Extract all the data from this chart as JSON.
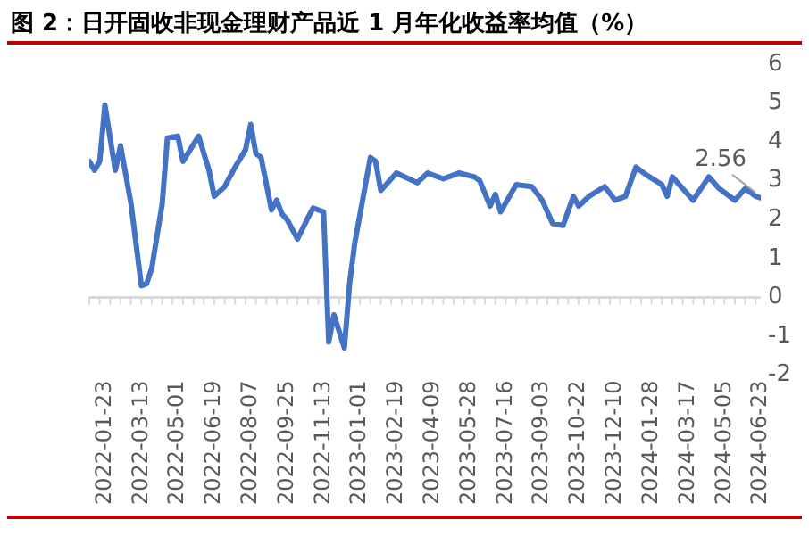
{
  "chart_data": {
    "type": "line",
    "title": "图 2：日开固收非现金理财产品近 1 月年化收益率均值（%）",
    "series": [
      {
        "color": "#4472c4",
        "x": [
          "2022-01-02",
          "2022-01-09",
          "2022-01-16",
          "2022-01-23",
          "2022-01-30",
          "2022-02-06",
          "2022-02-13",
          "2022-02-27",
          "2022-03-13",
          "2022-03-20",
          "2022-03-27",
          "2022-04-10",
          "2022-04-17",
          "2022-05-01",
          "2022-05-08",
          "2022-05-29",
          "2022-06-12",
          "2022-06-19",
          "2022-07-03",
          "2022-07-17",
          "2022-07-31",
          "2022-08-07",
          "2022-08-14",
          "2022-08-21",
          "2022-09-04",
          "2022-09-11",
          "2022-09-18",
          "2022-09-25",
          "2022-10-09",
          "2022-10-23",
          "2022-10-30",
          "2022-11-13",
          "2022-11-20",
          "2022-11-27",
          "2022-12-11",
          "2022-12-18",
          "2022-12-25",
          "2023-01-15",
          "2023-01-22",
          "2023-01-29",
          "2023-02-19",
          "2023-03-19",
          "2023-04-02",
          "2023-04-23",
          "2023-05-14",
          "2023-06-04",
          "2023-06-11",
          "2023-06-25",
          "2023-07-02",
          "2023-07-09",
          "2023-07-30",
          "2023-08-20",
          "2023-09-03",
          "2023-09-17",
          "2023-10-01",
          "2023-10-15",
          "2023-10-22",
          "2023-11-05",
          "2023-11-26",
          "2023-12-10",
          "2023-12-24",
          "2024-01-07",
          "2024-01-21",
          "2024-02-11",
          "2024-02-18",
          "2024-02-25",
          "2024-03-10",
          "2024-03-24",
          "2024-04-14",
          "2024-04-28",
          "2024-05-19",
          "2024-06-02",
          "2024-06-16",
          "2024-06-23"
        ],
        "values": [
          3.5,
          3.27,
          3.5,
          4.95,
          4.1,
          3.27,
          3.9,
          2.42,
          0.3,
          0.35,
          0.75,
          2.4,
          4.1,
          4.15,
          3.5,
          4.15,
          3.27,
          2.6,
          2.85,
          3.35,
          3.8,
          4.45,
          3.7,
          3.6,
          2.25,
          2.5,
          2.15,
          2.0,
          1.5,
          2.05,
          2.3,
          2.2,
          -1.15,
          -0.45,
          -1.3,
          0.35,
          1.4,
          3.6,
          3.5,
          2.75,
          3.2,
          2.95,
          3.2,
          3.05,
          3.2,
          3.1,
          3.0,
          2.35,
          2.65,
          2.2,
          2.9,
          2.85,
          2.5,
          1.9,
          1.85,
          2.6,
          2.35,
          2.6,
          2.85,
          2.5,
          2.6,
          3.35,
          3.15,
          2.9,
          2.6,
          3.1,
          2.8,
          2.5,
          3.1,
          2.8,
          2.5,
          2.8,
          2.6,
          2.56
        ]
      }
    ],
    "xlim": [
      "2022-01-02",
      "2024-06-23"
    ],
    "xticks": [
      "2022-01-23",
      "2022-03-13",
      "2022-05-01",
      "2022-06-19",
      "2022-08-07",
      "2022-09-25",
      "2022-11-13",
      "2023-01-01",
      "2023-02-19",
      "2023-04-09",
      "2023-05-28",
      "2023-07-16",
      "2023-09-03",
      "2023-10-22",
      "2023-12-10",
      "2024-01-28",
      "2024-03-17",
      "2024-05-05",
      "2024-06-23"
    ],
    "ylim": [
      -2,
      6
    ],
    "yticks": [
      -2,
      -1,
      0,
      1,
      2,
      3,
      4,
      5,
      6
    ],
    "ref_lines": [
      {
        "axis": "y",
        "value": 0,
        "color": "#d9d9d9"
      }
    ],
    "grid": false,
    "legend": false,
    "marker": "none",
    "line_style": "solid",
    "annotations": [
      {
        "text": "2.56",
        "x": "2024-06-23",
        "y": 2.56
      }
    ]
  }
}
